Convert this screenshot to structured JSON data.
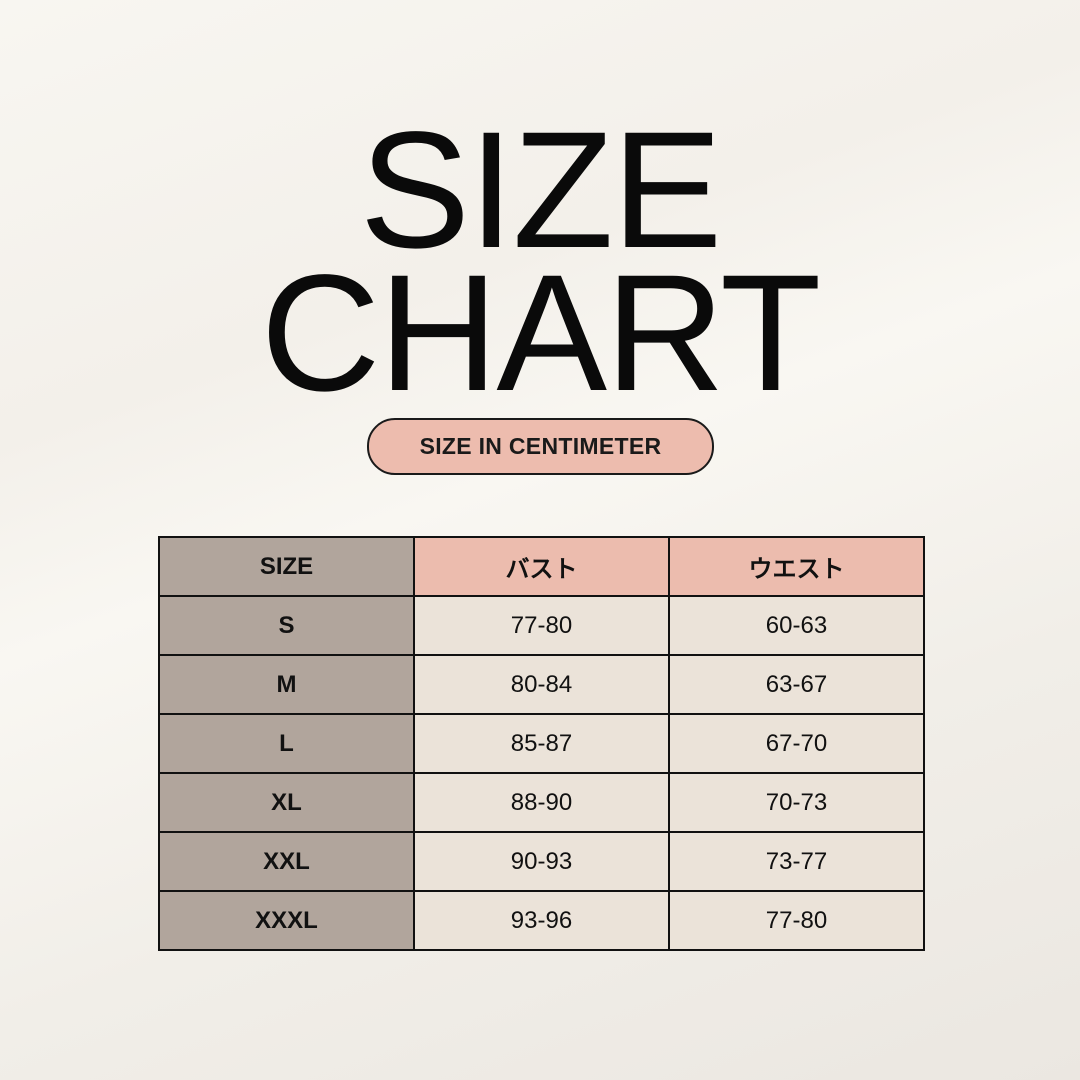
{
  "title": {
    "line1": "SIZE",
    "line2": "CHART"
  },
  "unit_label": "SIZE IN CENTIMETER",
  "colors": {
    "size_column": "#b1a59c",
    "header": "#ecbcae",
    "cells": "#ebe3d9",
    "pill": "#edbcae"
  },
  "table": {
    "headers": [
      "SIZE",
      "バスト",
      "ウエスト"
    ],
    "rows": [
      [
        "S",
        "77-80",
        "60-63"
      ],
      [
        "M",
        "80-84",
        "63-67"
      ],
      [
        "L",
        "85-87",
        "67-70"
      ],
      [
        "XL",
        "88-90",
        "70-73"
      ],
      [
        "XXL",
        "90-93",
        "73-77"
      ],
      [
        "XXXL",
        "93-96",
        "77-80"
      ]
    ]
  }
}
